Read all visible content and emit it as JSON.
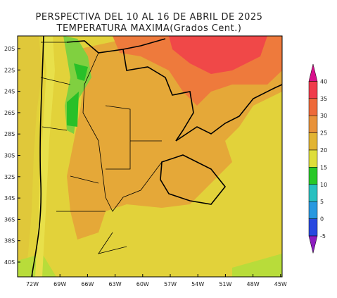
{
  "title": {
    "line1": "PERSPECTIVA DEL 10 AL 16 DE ABRIL DE 2025",
    "line2": "TEMPERATURA MAXIMA(Grados Cent.)"
  },
  "lat_labels": [
    "20S",
    "22S",
    "24S",
    "26S",
    "28S",
    "30S",
    "32S",
    "34S",
    "36S",
    "38S",
    "40S"
  ],
  "lon_labels": [
    "72W",
    "69W",
    "66W",
    "63W",
    "60W",
    "57W",
    "54W",
    "51W",
    "48W",
    "45W"
  ],
  "colorbar": {
    "labels": [
      "40",
      "35",
      "30",
      "25",
      "20",
      "15",
      "10",
      "5",
      "0",
      "-5"
    ],
    "colors": [
      "#d8108c",
      "#f03c4c",
      "#ee6a3a",
      "#e8923a",
      "#e2b432",
      "#dede3a",
      "#28c828",
      "#28c0c0",
      "#2898e0",
      "#2848e0",
      "#8c1cc0"
    ]
  }
}
